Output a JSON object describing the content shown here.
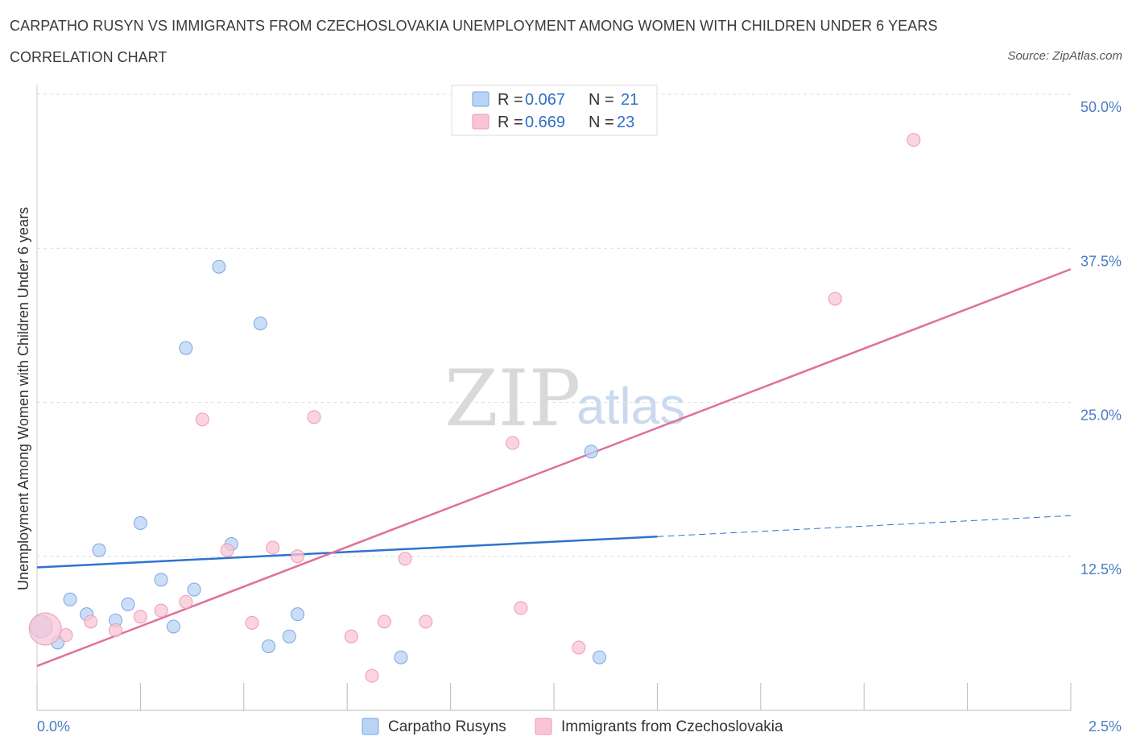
{
  "header": {
    "title": "CARPATHO RUSYN VS IMMIGRANTS FROM CZECHOSLOVAKIA UNEMPLOYMENT AMONG WOMEN WITH CHILDREN UNDER 6 YEARS",
    "subtitle": "CORRELATION CHART",
    "source": "Source: ZipAtlas.com"
  },
  "watermark": {
    "zip": "ZIP",
    "atlas": "atlas"
  },
  "colors": {
    "blue_fill": "#b9d3f5",
    "blue_stroke": "#7aa6e0",
    "blue_line": "#2f72d0",
    "pink_fill": "#f9c5d6",
    "pink_stroke": "#ee9ab6",
    "pink_line": "#e0709a",
    "grid": "#dddddd",
    "tick_label": "#4a7cc7"
  },
  "legend": {
    "rows": [
      {
        "r_label": "R =",
        "r_value": "0.067",
        "n_label": "N =",
        "n_value": "21"
      },
      {
        "r_label": "R =",
        "r_value": "0.669",
        "n_label": "N =",
        "n_value": "23"
      }
    ]
  },
  "chart_data": {
    "type": "scatter",
    "title": "CARPATHO RUSYN VS IMMIGRANTS FROM CZECHOSLOVAKIA UNEMPLOYMENT AMONG WOMEN WITH CHILDREN UNDER 6 YEARS",
    "xlabel": "",
    "ylabel": "Unemployment Among Women with Children Under 6 years",
    "xlim": [
      0,
      2.5
    ],
    "ylim": [
      0,
      50
    ],
    "x_tick_labels": [
      "0.0%",
      "2.5%"
    ],
    "y_ticks": [
      12.5,
      25.0,
      37.5,
      50.0
    ],
    "y_tick_labels": [
      "12.5%",
      "25.0%",
      "37.5%",
      "50.0%"
    ],
    "grid": true,
    "series": [
      {
        "name": "Carpatho Rusyns",
        "color": "#b9d3f5",
        "points": [
          {
            "x": 0.01,
            "y": 6.8,
            "size": 14
          },
          {
            "x": 0.05,
            "y": 5.5
          },
          {
            "x": 0.08,
            "y": 9.0
          },
          {
            "x": 0.12,
            "y": 7.8
          },
          {
            "x": 0.15,
            "y": 13.0
          },
          {
            "x": 0.19,
            "y": 7.3
          },
          {
            "x": 0.22,
            "y": 8.6
          },
          {
            "x": 0.25,
            "y": 15.2
          },
          {
            "x": 0.3,
            "y": 10.6
          },
          {
            "x": 0.33,
            "y": 6.8
          },
          {
            "x": 0.36,
            "y": 29.4
          },
          {
            "x": 0.38,
            "y": 9.8
          },
          {
            "x": 0.44,
            "y": 36.0
          },
          {
            "x": 0.47,
            "y": 13.5
          },
          {
            "x": 0.54,
            "y": 31.4
          },
          {
            "x": 0.56,
            "y": 5.2
          },
          {
            "x": 0.61,
            "y": 6.0
          },
          {
            "x": 0.63,
            "y": 7.8
          },
          {
            "x": 0.88,
            "y": 4.3
          },
          {
            "x": 1.34,
            "y": 21.0
          },
          {
            "x": 1.36,
            "y": 4.3
          }
        ],
        "trend": {
          "x0": 0.0,
          "y0": 11.6,
          "x1": 1.5,
          "y1": 14.1,
          "dash_to_x": 2.5,
          "dash_to_y": 15.8
        }
      },
      {
        "name": "Immigrants from Czechoslovakia",
        "color": "#f9c5d6",
        "points": [
          {
            "x": 0.02,
            "y": 6.6,
            "size": 20
          },
          {
            "x": 0.07,
            "y": 6.1
          },
          {
            "x": 0.13,
            "y": 7.2
          },
          {
            "x": 0.19,
            "y": 6.5
          },
          {
            "x": 0.25,
            "y": 7.6
          },
          {
            "x": 0.3,
            "y": 8.1
          },
          {
            "x": 0.36,
            "y": 8.8
          },
          {
            "x": 0.4,
            "y": 23.6
          },
          {
            "x": 0.46,
            "y": 13.0
          },
          {
            "x": 0.52,
            "y": 7.1
          },
          {
            "x": 0.57,
            "y": 13.2
          },
          {
            "x": 0.63,
            "y": 12.5
          },
          {
            "x": 0.67,
            "y": 23.8
          },
          {
            "x": 0.76,
            "y": 6.0
          },
          {
            "x": 0.81,
            "y": 2.8
          },
          {
            "x": 0.84,
            "y": 7.2
          },
          {
            "x": 0.89,
            "y": 12.3
          },
          {
            "x": 0.94,
            "y": 7.2
          },
          {
            "x": 1.15,
            "y": 21.7
          },
          {
            "x": 1.17,
            "y": 8.3
          },
          {
            "x": 1.31,
            "y": 5.1
          },
          {
            "x": 1.93,
            "y": 33.4
          },
          {
            "x": 2.12,
            "y": 46.3
          }
        ],
        "trend": {
          "x0": 0.0,
          "y0": 3.6,
          "x1": 2.5,
          "y1": 35.8
        }
      }
    ]
  }
}
